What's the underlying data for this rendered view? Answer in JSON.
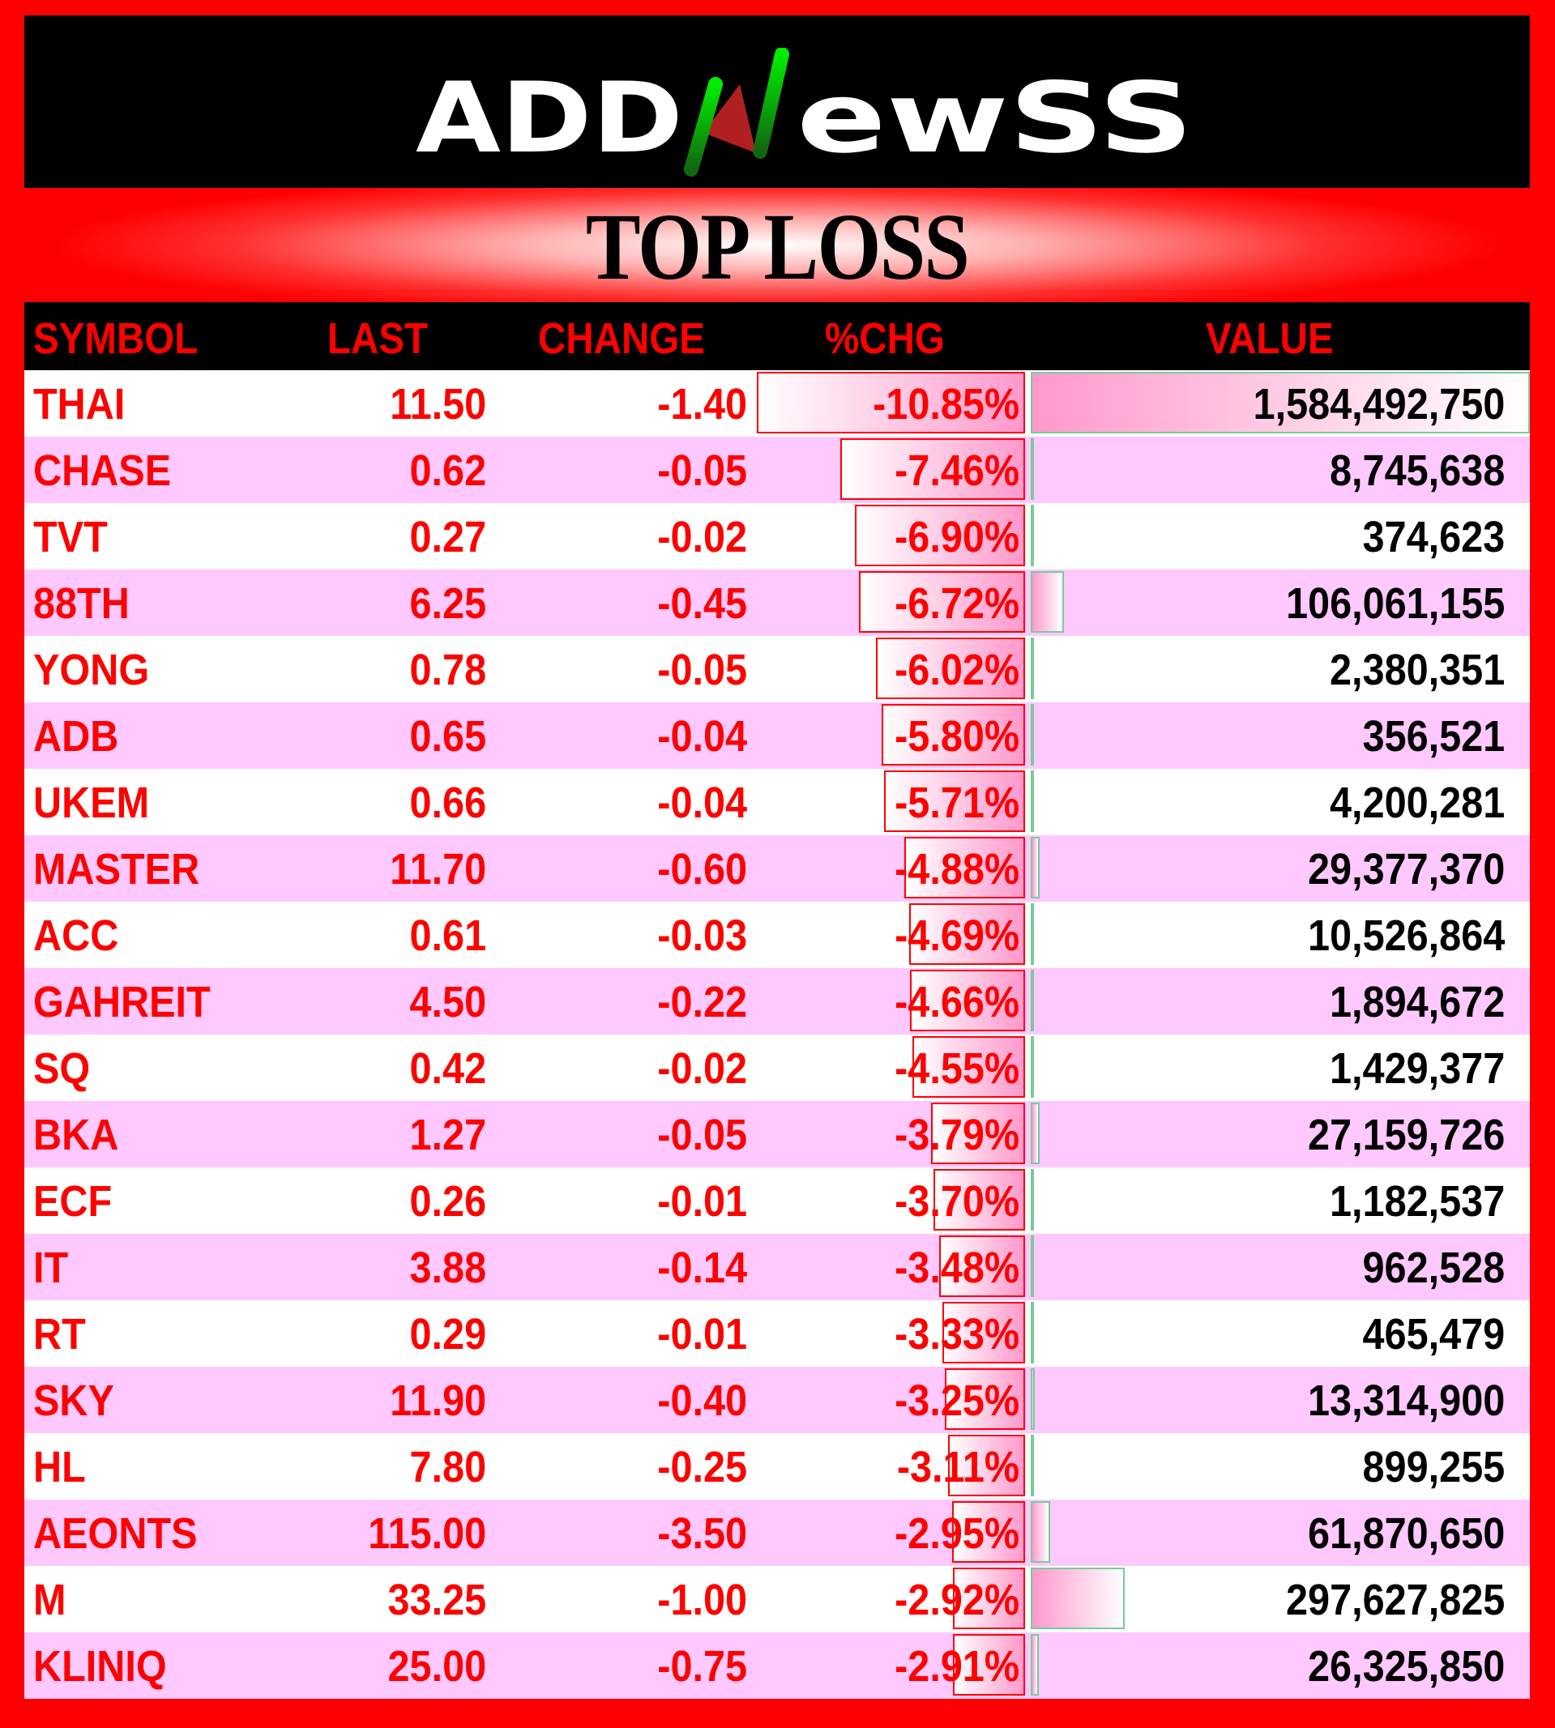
{
  "logo": {
    "text": "ADDNewss",
    "colors": {
      "green": "#00dd00",
      "red": "#cc2222"
    }
  },
  "title": "TOP LOSS",
  "columns": {
    "symbol": "SYMBOL",
    "last": "LAST",
    "change": "CHANGE",
    "pct": "%CHG",
    "value": "VALUE"
  },
  "colors": {
    "accent": "#ff0000",
    "row_alt": "#ffc8ff",
    "pct_bar": "#ff99cc",
    "value_bar_border": "#77cc99"
  },
  "rows": [
    {
      "symbol": "THAI",
      "last": "11.50",
      "change": "-1.40",
      "pct": "-10.85%",
      "value": "1,584,492,750"
    },
    {
      "symbol": "CHASE",
      "last": "0.62",
      "change": "-0.05",
      "pct": "-7.46%",
      "value": "8,745,638"
    },
    {
      "symbol": "TVT",
      "last": "0.27",
      "change": "-0.02",
      "pct": "-6.90%",
      "value": "374,623"
    },
    {
      "symbol": "88TH",
      "last": "6.25",
      "change": "-0.45",
      "pct": "-6.72%",
      "value": "106,061,155"
    },
    {
      "symbol": "YONG",
      "last": "0.78",
      "change": "-0.05",
      "pct": "-6.02%",
      "value": "2,380,351"
    },
    {
      "symbol": "ADB",
      "last": "0.65",
      "change": "-0.04",
      "pct": "-5.80%",
      "value": "356,521"
    },
    {
      "symbol": "UKEM",
      "last": "0.66",
      "change": "-0.04",
      "pct": "-5.71%",
      "value": "4,200,281"
    },
    {
      "symbol": "MASTER",
      "last": "11.70",
      "change": "-0.60",
      "pct": "-4.88%",
      "value": "29,377,370"
    },
    {
      "symbol": "ACC",
      "last": "0.61",
      "change": "-0.03",
      "pct": "-4.69%",
      "value": "10,526,864"
    },
    {
      "symbol": "GAHREIT",
      "last": "4.50",
      "change": "-0.22",
      "pct": "-4.66%",
      "value": "1,894,672"
    },
    {
      "symbol": "SQ",
      "last": "0.42",
      "change": "-0.02",
      "pct": "-4.55%",
      "value": "1,429,377"
    },
    {
      "symbol": "BKA",
      "last": "1.27",
      "change": "-0.05",
      "pct": "-3.79%",
      "value": "27,159,726"
    },
    {
      "symbol": "ECF",
      "last": "0.26",
      "change": "-0.01",
      "pct": "-3.70%",
      "value": "1,182,537"
    },
    {
      "symbol": "IT",
      "last": "3.88",
      "change": "-0.14",
      "pct": "-3.48%",
      "value": "962,528"
    },
    {
      "symbol": "RT",
      "last": "0.29",
      "change": "-0.01",
      "pct": "-3.33%",
      "value": "465,479"
    },
    {
      "symbol": "SKY",
      "last": "11.90",
      "change": "-0.40",
      "pct": "-3.25%",
      "value": "13,314,900"
    },
    {
      "symbol": "HL",
      "last": "7.80",
      "change": "-0.25",
      "pct": "-3.11%",
      "value": "899,255"
    },
    {
      "symbol": "AEONTS",
      "last": "115.00",
      "change": "-3.50",
      "pct": "-2.95%",
      "value": "61,870,650"
    },
    {
      "symbol": "M",
      "last": "33.25",
      "change": "-1.00",
      "pct": "-2.92%",
      "value": "297,627,825"
    },
    {
      "symbol": "KLINIQ",
      "last": "25.00",
      "change": "-0.75",
      "pct": "-2.91%",
      "value": "26,325,850"
    }
  ]
}
